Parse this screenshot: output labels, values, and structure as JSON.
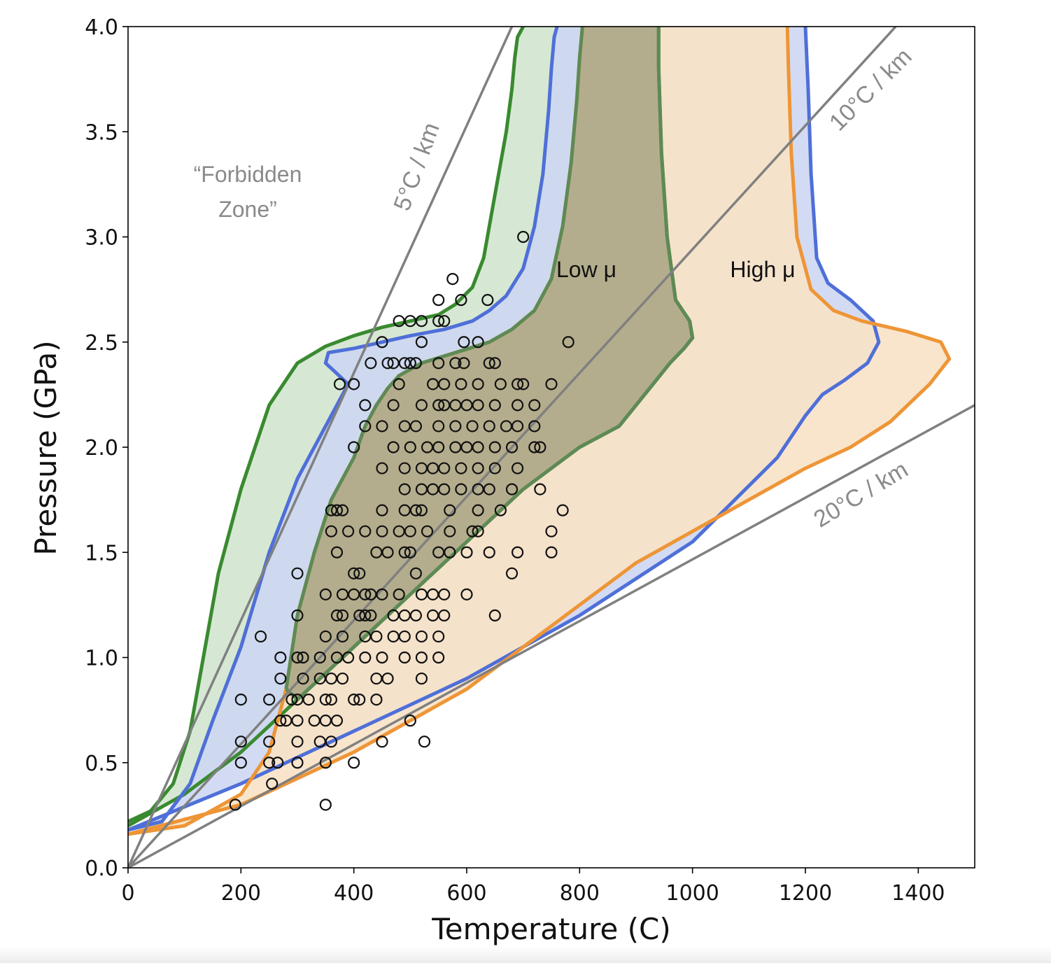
{
  "chart_data": {
    "type": "scatter",
    "xlabel": "Temperature (C)",
    "ylabel": "Pressure (GPa)",
    "xlim": [
      0,
      1500
    ],
    "ylim": [
      0,
      4.0
    ],
    "xticks": [
      "0",
      "200",
      "400",
      "600",
      "800",
      "1000",
      "1200",
      "1400"
    ],
    "yticks": [
      "0.0",
      "0.5",
      "1.0",
      "1.5",
      "2.0",
      "2.5",
      "3.0",
      "3.5",
      "4.0"
    ],
    "grid": false,
    "annotations": {
      "forbidden_zone": [
        "“Forbidden",
        "Zone”"
      ],
      "low_mu": "Low μ",
      "high_mu": "High μ"
    },
    "geotherms": [
      {
        "label": "5°C / km",
        "x": [
          0,
          680
        ],
        "y": [
          0,
          4.0
        ]
      },
      {
        "label": "10°C / km",
        "x": [
          0,
          1360
        ],
        "y": [
          0,
          4.0
        ]
      },
      {
        "label": "20°C / km",
        "x": [
          0,
          1500
        ],
        "y": [
          0,
          2.2
        ]
      }
    ],
    "envelopes": [
      {
        "color": "#3a8a30",
        "fill": "#d2e6cf",
        "upper": {
          "x": [
            0,
            40,
            80,
            110,
            130,
            160,
            200,
            250,
            300,
            350,
            400,
            450,
            500,
            550,
            580,
            610,
            630,
            650,
            670,
            680,
            685,
            690,
            700
          ],
          "y": [
            0.22,
            0.27,
            0.4,
            0.65,
            0.95,
            1.4,
            1.8,
            2.2,
            2.4,
            2.48,
            2.53,
            2.57,
            2.6,
            2.63,
            2.68,
            2.76,
            2.9,
            3.2,
            3.5,
            3.7,
            3.85,
            3.95,
            4.0
          ]
        },
        "lower": {
          "x": [
            0,
            100,
            200,
            300,
            400,
            500,
            600,
            700,
            800,
            870,
            900,
            930,
            960,
            985,
            1000,
            995,
            970,
            955,
            945,
            940,
            940
          ],
          "y": [
            0.2,
            0.35,
            0.55,
            0.8,
            1.05,
            1.3,
            1.55,
            1.8,
            2.0,
            2.1,
            2.2,
            2.3,
            2.4,
            2.47,
            2.52,
            2.6,
            2.7,
            3.0,
            3.4,
            3.8,
            4.0
          ]
        }
      },
      {
        "color": "#4f6fd8",
        "fill": "#cdd7f2",
        "upper": {
          "x": [
            0,
            60,
            110,
            150,
            200,
            250,
            300,
            350,
            380,
            390,
            370,
            350,
            355,
            400,
            450,
            500,
            560,
            610,
            640,
            670,
            700,
            720,
            735,
            745,
            750,
            755,
            760
          ],
          "y": [
            0.18,
            0.22,
            0.4,
            0.7,
            1.05,
            1.5,
            1.85,
            2.1,
            2.25,
            2.3,
            2.35,
            2.4,
            2.45,
            2.47,
            2.5,
            2.53,
            2.56,
            2.6,
            2.65,
            2.72,
            2.85,
            3.05,
            3.3,
            3.6,
            3.8,
            3.95,
            4.0
          ]
        },
        "lower": {
          "x": [
            0,
            200,
            400,
            600,
            800,
            1000,
            1150,
            1200,
            1230,
            1270,
            1310,
            1330,
            1320,
            1280,
            1240,
            1220,
            1210,
            1205,
            1200
          ],
          "y": [
            0.18,
            0.4,
            0.65,
            0.9,
            1.2,
            1.55,
            1.95,
            2.15,
            2.25,
            2.32,
            2.4,
            2.5,
            2.6,
            2.7,
            2.78,
            2.9,
            3.3,
            3.7,
            4.0
          ]
        }
      },
      {
        "color": "#ee9536",
        "fill": "#f8e2c7",
        "upper": {
          "x": [
            0,
            100,
            200,
            250,
            280,
            300,
            330,
            360,
            400,
            420,
            440,
            460,
            480,
            520,
            580,
            640,
            680,
            720,
            750,
            770,
            785,
            795,
            800,
            805
          ],
          "y": [
            0.16,
            0.2,
            0.35,
            0.55,
            0.85,
            1.2,
            1.5,
            1.75,
            1.95,
            2.1,
            2.2,
            2.28,
            2.34,
            2.4,
            2.45,
            2.5,
            2.56,
            2.65,
            2.8,
            3.05,
            3.35,
            3.65,
            3.85,
            4.0
          ]
        },
        "lower": {
          "x": [
            0,
            200,
            400,
            500,
            600,
            700,
            800,
            900,
            1000,
            1100,
            1200,
            1280,
            1350,
            1420,
            1455,
            1440,
            1380,
            1300,
            1250,
            1210,
            1185,
            1175,
            1170,
            1168
          ],
          "y": [
            0.16,
            0.3,
            0.55,
            0.7,
            0.85,
            1.05,
            1.25,
            1.45,
            1.6,
            1.75,
            1.9,
            2.0,
            2.12,
            2.3,
            2.42,
            2.5,
            2.55,
            2.6,
            2.65,
            2.75,
            3.0,
            3.4,
            3.8,
            4.0
          ]
        }
      },
      {
        "color": "#5e8a55",
        "fill": "#a8a383",
        "upper": {
          "x": [
            280,
            300,
            330,
            360,
            400,
            420,
            440,
            460,
            480,
            520,
            580,
            640,
            680,
            720,
            750,
            770,
            785,
            795,
            800,
            805
          ],
          "y": [
            0.85,
            1.2,
            1.5,
            1.75,
            1.95,
            2.1,
            2.2,
            2.28,
            2.34,
            2.4,
            2.45,
            2.5,
            2.56,
            2.65,
            2.8,
            3.05,
            3.35,
            3.65,
            3.85,
            4.0
          ]
        },
        "lower": {
          "x": [
            280,
            300,
            400,
            500,
            600,
            700,
            800,
            870,
            900,
            930,
            960,
            985,
            1000,
            995,
            970,
            955,
            945,
            940,
            940
          ],
          "y": [
            0.85,
            0.8,
            1.05,
            1.3,
            1.55,
            1.8,
            2.0,
            2.1,
            2.2,
            2.3,
            2.4,
            2.47,
            2.52,
            2.6,
            2.7,
            3.0,
            3.4,
            3.8,
            4.0
          ]
        }
      }
    ],
    "points": [
      [
        700,
        3.0
      ],
      [
        575,
        2.8
      ],
      [
        550,
        2.7
      ],
      [
        590,
        2.7
      ],
      [
        637,
        2.7
      ],
      [
        480,
        2.6
      ],
      [
        500,
        2.6
      ],
      [
        520,
        2.6
      ],
      [
        550,
        2.6
      ],
      [
        560,
        2.6
      ],
      [
        450,
        2.5
      ],
      [
        520,
        2.5
      ],
      [
        595,
        2.5
      ],
      [
        620,
        2.5
      ],
      [
        780,
        2.5
      ],
      [
        430,
        2.4
      ],
      [
        460,
        2.4
      ],
      [
        470,
        2.4
      ],
      [
        490,
        2.4
      ],
      [
        500,
        2.4
      ],
      [
        510,
        2.4
      ],
      [
        550,
        2.4
      ],
      [
        580,
        2.4
      ],
      [
        595,
        2.4
      ],
      [
        640,
        2.4
      ],
      [
        650,
        2.4
      ],
      [
        375,
        2.3
      ],
      [
        400,
        2.3
      ],
      [
        480,
        2.3
      ],
      [
        540,
        2.3
      ],
      [
        560,
        2.3
      ],
      [
        590,
        2.3
      ],
      [
        620,
        2.3
      ],
      [
        660,
        2.3
      ],
      [
        690,
        2.3
      ],
      [
        700,
        2.3
      ],
      [
        750,
        2.3
      ],
      [
        420,
        2.2
      ],
      [
        470,
        2.2
      ],
      [
        520,
        2.2
      ],
      [
        550,
        2.2
      ],
      [
        560,
        2.2
      ],
      [
        580,
        2.2
      ],
      [
        600,
        2.2
      ],
      [
        620,
        2.2
      ],
      [
        650,
        2.2
      ],
      [
        690,
        2.2
      ],
      [
        720,
        2.2
      ],
      [
        420,
        2.1
      ],
      [
        450,
        2.1
      ],
      [
        490,
        2.1
      ],
      [
        510,
        2.1
      ],
      [
        550,
        2.1
      ],
      [
        580,
        2.1
      ],
      [
        610,
        2.1
      ],
      [
        640,
        2.1
      ],
      [
        670,
        2.1
      ],
      [
        690,
        2.1
      ],
      [
        720,
        2.1
      ],
      [
        400,
        2.0
      ],
      [
        470,
        2.0
      ],
      [
        500,
        2.0
      ],
      [
        530,
        2.0
      ],
      [
        550,
        2.0
      ],
      [
        580,
        2.0
      ],
      [
        600,
        2.0
      ],
      [
        620,
        2.0
      ],
      [
        650,
        2.0
      ],
      [
        680,
        2.0
      ],
      [
        720,
        2.0
      ],
      [
        730,
        2.0
      ],
      [
        450,
        1.9
      ],
      [
        490,
        1.9
      ],
      [
        520,
        1.9
      ],
      [
        540,
        1.9
      ],
      [
        560,
        1.9
      ],
      [
        590,
        1.9
      ],
      [
        620,
        1.9
      ],
      [
        650,
        1.9
      ],
      [
        690,
        1.9
      ],
      [
        490,
        1.8
      ],
      [
        520,
        1.8
      ],
      [
        540,
        1.8
      ],
      [
        560,
        1.8
      ],
      [
        590,
        1.8
      ],
      [
        620,
        1.8
      ],
      [
        640,
        1.8
      ],
      [
        680,
        1.8
      ],
      [
        730,
        1.8
      ],
      [
        360,
        1.7
      ],
      [
        370,
        1.7
      ],
      [
        380,
        1.7
      ],
      [
        450,
        1.7
      ],
      [
        490,
        1.7
      ],
      [
        510,
        1.7
      ],
      [
        520,
        1.7
      ],
      [
        570,
        1.7
      ],
      [
        620,
        1.7
      ],
      [
        660,
        1.7
      ],
      [
        770,
        1.7
      ],
      [
        360,
        1.6
      ],
      [
        390,
        1.6
      ],
      [
        420,
        1.6
      ],
      [
        450,
        1.6
      ],
      [
        480,
        1.6
      ],
      [
        500,
        1.6
      ],
      [
        530,
        1.6
      ],
      [
        570,
        1.6
      ],
      [
        610,
        1.6
      ],
      [
        620,
        1.6
      ],
      [
        750,
        1.6
      ],
      [
        370,
        1.5
      ],
      [
        440,
        1.5
      ],
      [
        460,
        1.5
      ],
      [
        490,
        1.5
      ],
      [
        500,
        1.5
      ],
      [
        550,
        1.5
      ],
      [
        570,
        1.5
      ],
      [
        600,
        1.5
      ],
      [
        640,
        1.5
      ],
      [
        690,
        1.5
      ],
      [
        750,
        1.5
      ],
      [
        300,
        1.4
      ],
      [
        400,
        1.4
      ],
      [
        410,
        1.4
      ],
      [
        510,
        1.4
      ],
      [
        680,
        1.4
      ],
      [
        350,
        1.3
      ],
      [
        380,
        1.3
      ],
      [
        400,
        1.3
      ],
      [
        420,
        1.3
      ],
      [
        430,
        1.3
      ],
      [
        450,
        1.3
      ],
      [
        480,
        1.3
      ],
      [
        520,
        1.3
      ],
      [
        540,
        1.3
      ],
      [
        560,
        1.3
      ],
      [
        600,
        1.3
      ],
      [
        370,
        1.2
      ],
      [
        380,
        1.2
      ],
      [
        410,
        1.2
      ],
      [
        420,
        1.2
      ],
      [
        430,
        1.2
      ],
      [
        470,
        1.2
      ],
      [
        490,
        1.2
      ],
      [
        510,
        1.2
      ],
      [
        540,
        1.2
      ],
      [
        560,
        1.2
      ],
      [
        650,
        1.2
      ],
      [
        300,
        1.2
      ],
      [
        235,
        1.1
      ],
      [
        350,
        1.1
      ],
      [
        380,
        1.1
      ],
      [
        420,
        1.1
      ],
      [
        440,
        1.1
      ],
      [
        470,
        1.1
      ],
      [
        490,
        1.1
      ],
      [
        520,
        1.1
      ],
      [
        550,
        1.1
      ],
      [
        270,
        1.0
      ],
      [
        300,
        1.0
      ],
      [
        310,
        1.0
      ],
      [
        340,
        1.0
      ],
      [
        370,
        1.0
      ],
      [
        390,
        1.0
      ],
      [
        420,
        1.0
      ],
      [
        450,
        1.0
      ],
      [
        490,
        1.0
      ],
      [
        520,
        1.0
      ],
      [
        550,
        1.0
      ],
      [
        270,
        0.9
      ],
      [
        310,
        0.9
      ],
      [
        340,
        0.9
      ],
      [
        360,
        0.9
      ],
      [
        380,
        0.9
      ],
      [
        440,
        0.9
      ],
      [
        460,
        0.9
      ],
      [
        520,
        0.9
      ],
      [
        200,
        0.8
      ],
      [
        250,
        0.8
      ],
      [
        290,
        0.8
      ],
      [
        300,
        0.8
      ],
      [
        320,
        0.8
      ],
      [
        350,
        0.8
      ],
      [
        360,
        0.8
      ],
      [
        400,
        0.8
      ],
      [
        410,
        0.8
      ],
      [
        440,
        0.8
      ],
      [
        270,
        0.7
      ],
      [
        280,
        0.7
      ],
      [
        300,
        0.7
      ],
      [
        330,
        0.7
      ],
      [
        350,
        0.7
      ],
      [
        370,
        0.7
      ],
      [
        500,
        0.7
      ],
      [
        200,
        0.6
      ],
      [
        250,
        0.6
      ],
      [
        300,
        0.6
      ],
      [
        340,
        0.6
      ],
      [
        360,
        0.6
      ],
      [
        450,
        0.6
      ],
      [
        525,
        0.6
      ],
      [
        200,
        0.5
      ],
      [
        250,
        0.5
      ],
      [
        265,
        0.5
      ],
      [
        300,
        0.5
      ],
      [
        350,
        0.5
      ],
      [
        400,
        0.5
      ],
      [
        255,
        0.4
      ],
      [
        190,
        0.3
      ],
      [
        350,
        0.3
      ]
    ]
  }
}
